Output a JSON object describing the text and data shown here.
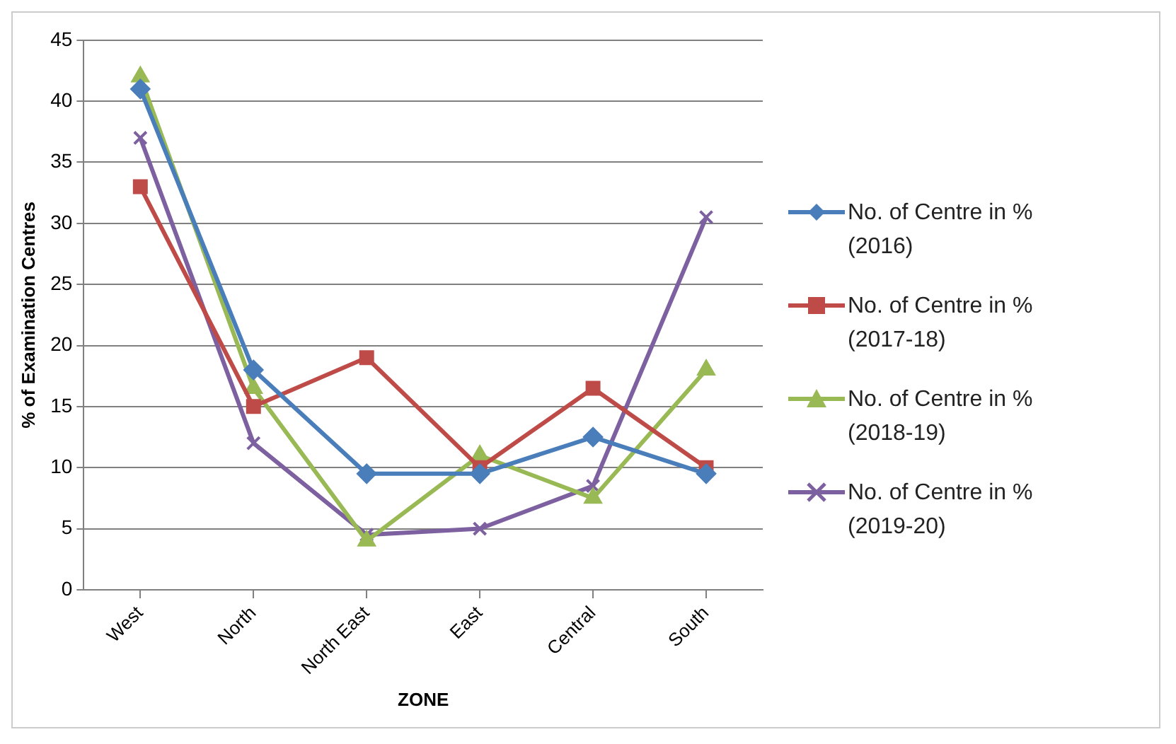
{
  "chart_data": {
    "type": "line",
    "xlabel": "ZONE",
    "ylabel": "% of Examination Centres",
    "categories": [
      "West",
      "North",
      "North East",
      "East",
      "Central",
      "South"
    ],
    "series": [
      {
        "name": "No. of Centre in % (2016)",
        "color": "#4a7ebb",
        "marker": "diamond",
        "values": [
          41,
          18,
          9.5,
          9.5,
          12.5,
          9.5
        ]
      },
      {
        "name": "No. of Centre in % (2017-18)",
        "color": "#be4b48",
        "marker": "square",
        "values": [
          33,
          15,
          19,
          10,
          16.5,
          10
        ]
      },
      {
        "name": "No. of Centre in % (2018-19)",
        "color": "#98b954",
        "marker": "triangle",
        "values": [
          42,
          16.5,
          4,
          11,
          7.5,
          18
        ]
      },
      {
        "name": "No. of Centre in % (2019-20)",
        "color": "#7d60a0",
        "marker": "cross",
        "values": [
          37,
          12,
          4.5,
          5,
          8.5,
          30.5
        ]
      }
    ],
    "ylim": [
      0,
      45
    ],
    "yticks": [
      0,
      5,
      10,
      15,
      20,
      25,
      30,
      35,
      40,
      45
    ],
    "grid": "y",
    "legend": "right"
  }
}
